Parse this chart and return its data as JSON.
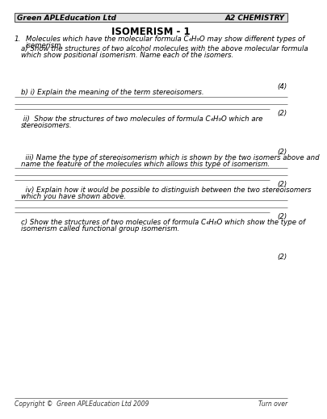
{
  "header_left": "Green APLEducation Ltd",
  "header_right": "A2 CHEMISTRY",
  "title": "ISOMERISM - 1",
  "bg_color": "#ffffff",
  "header_bg": "#e0e0e0",
  "border_color": "#000000",
  "footer_left": "Copyright ©  Green APLEducation Ltd 2009",
  "footer_right": "Turn over",
  "q1_number": "1.",
  "q1_line1": "Molecules which have the molecular formula C₄H₉O may show different types of",
  "q1_line2": "isomerism.",
  "qa_line1": "a) Show the structures of two alcohol molecules with the above molecular formula",
  "qa_line2": "which show positional isomerism. Name each of the isomers.",
  "qa_mark": "(4)",
  "qbi_text": "b) i) Explain the meaning of the term stereoisomers.",
  "qbi_mark": "(2)",
  "qbii_line1": " ii)  Show the structures of two molecules of formula C₄H₉O which are",
  "qbii_line2": "stereoisomers.",
  "qbii_mark": "(2)",
  "qbiii_line1": "  iii) Name the type of stereoisomerism which is shown by the two isomers above and",
  "qbiii_line2": "name the feature of the molecules which allows this type of isomerism.",
  "qbiii_mark": "(2)",
  "qbiv_line1": "  iv) Explain how it would be possible to distinguish between the two stereoisomers",
  "qbiv_line2": "which you have shown above.",
  "qbiv_mark": "(2)",
  "qc_line1": "c) Show the structures of two molecules of formula C₄H₈O which show the type of",
  "qc_line2": "isomerism called functional group isomerism.",
  "qc_mark": "(2)",
  "line_color": "#888888",
  "text_font": "DejaVu Sans",
  "italic_font": "DejaVu Sans"
}
